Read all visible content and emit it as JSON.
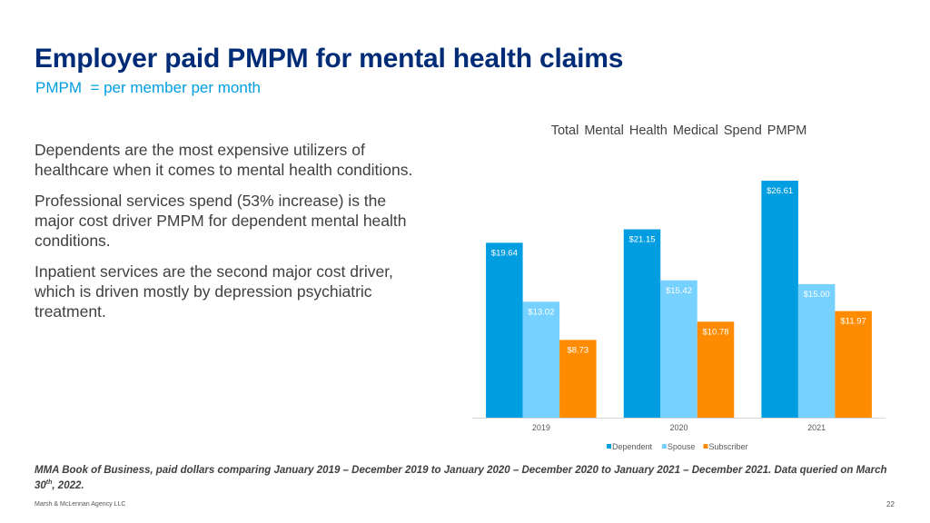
{
  "header": {
    "title": "Employer paid PMPM for mental health claims",
    "subtitle": "PMPM  = per member per month"
  },
  "body": {
    "paragraphs": [
      "Dependents are the most expensive utilizers of healthcare when it comes to mental health conditions.",
      "Professional services spend (53% increase) is the major cost driver PMPM for dependent mental health conditions.",
      "Inpatient services are the second major cost driver, which is driven mostly by depression psychiatric treatment."
    ]
  },
  "chart_data": {
    "type": "bar",
    "title": "Total Mental Health Medical Spend PMPM",
    "categories": [
      "2019",
      "2020",
      "2021"
    ],
    "series": [
      {
        "name": "Dependent",
        "color": "#009de0",
        "values": [
          19.64,
          21.15,
          26.61
        ],
        "labels": [
          "$19.64",
          "$21.15",
          "$26.61"
        ]
      },
      {
        "name": "Spouse",
        "color": "#76d1ff",
        "values": [
          13.02,
          15.42,
          15.0
        ],
        "labels": [
          "$13.02",
          "$15.42",
          "$15.00"
        ]
      },
      {
        "name": "Subscriber",
        "color": "#ff8c00",
        "values": [
          8.73,
          10.78,
          11.97
        ],
        "labels": [
          "$8.73",
          "$10.78",
          "$11.97"
        ]
      }
    ],
    "ylim": [
      0,
      28
    ],
    "grid": false,
    "legend": "bottom",
    "xlabel": "",
    "ylabel": ""
  },
  "footer": {
    "note_main": "MMA Book of Business, paid dollars comparing January 2019 – December 2019 to January 2020 – December 2020 to January 2021 – December 2021. Data queried on March 30",
    "note_sup": "th",
    "note_end": ", 2022.",
    "company": "Marsh & McLennan Agency LLC",
    "page": "22"
  }
}
